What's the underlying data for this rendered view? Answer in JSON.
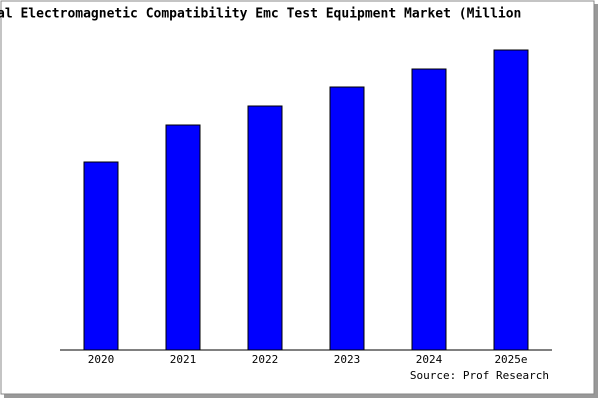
{
  "chart_data": {
    "type": "bar",
    "title": "al Electromagnetic Compatibility Emc Test Equipment Market (Million",
    "source": "Source: Prof Research",
    "categories": [
      "2020",
      "2021",
      "2022",
      "2023",
      "2024",
      "2025e"
    ],
    "values": [
      188,
      225,
      244,
      263,
      281,
      300
    ],
    "color": "#0000ff",
    "ylim": [
      0,
      300
    ]
  }
}
